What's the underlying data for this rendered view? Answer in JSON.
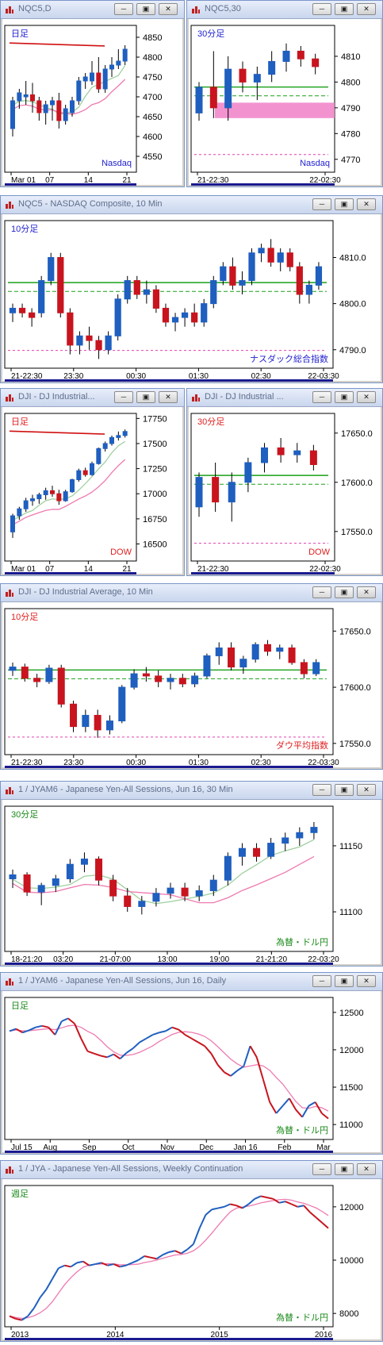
{
  "colors": {
    "up": "#1f5fbf",
    "down": "#c8141e",
    "green_line": "#1aa01a",
    "red_ma": "#d01010",
    "pink_ma": "#ee7ab0",
    "lightgreen_ma": "#9fd09f",
    "magenta_dash": "#e040b0",
    "zone_fill": "#f080c8",
    "nav_blue": "#1a1a90",
    "label_blue": "#1f1fd0",
    "label_red": "#e02020",
    "label_green": "#1a8a1a"
  },
  "panels": [
    {
      "id": "p1",
      "title": "NQC5,D",
      "chart_data": {
        "type": "candlestick",
        "corner_label": "日足",
        "watermark": "Nasdaq",
        "yticks": [
          4550,
          4600,
          4650,
          4700,
          4750,
          4800,
          4850
        ],
        "ylim": [
          4510,
          4880
        ],
        "xticks": [
          "Mar 01",
          "07",
          "14",
          "21"
        ],
        "candles": [
          [
            4620,
            4700,
            4600,
            4690
          ],
          [
            4690,
            4720,
            4670,
            4710
          ],
          [
            4700,
            4740,
            4680,
            4705
          ],
          [
            4705,
            4735,
            4660,
            4690
          ],
          [
            4690,
            4700,
            4640,
            4660
          ],
          [
            4660,
            4690,
            4630,
            4680
          ],
          [
            4680,
            4700,
            4640,
            4690
          ],
          [
            4690,
            4710,
            4620,
            4640
          ],
          [
            4640,
            4680,
            4630,
            4670
          ],
          [
            4660,
            4700,
            4650,
            4690
          ],
          [
            4690,
            4750,
            4680,
            4740
          ],
          [
            4740,
            4760,
            4720,
            4750
          ],
          [
            4740,
            4790,
            4730,
            4760
          ],
          [
            4760,
            4800,
            4710,
            4720
          ],
          [
            4720,
            4780,
            4710,
            4770
          ],
          [
            4770,
            4800,
            4750,
            4780
          ],
          [
            4780,
            4820,
            4770,
            4790
          ],
          [
            4790,
            4830,
            4780,
            4820
          ]
        ]
      }
    },
    {
      "id": "p2",
      "title": "NQC5,30",
      "chart_data": {
        "type": "candlestick",
        "corner_label": "30分足",
        "watermark": "Nasdaq",
        "yticks": [
          4770,
          4780,
          4790,
          4800,
          4810
        ],
        "ylim": [
          4765,
          4822
        ],
        "xticks": [
          "21-22:30",
          "22-02:30"
        ],
        "zone": [
          4786,
          4792
        ],
        "candles": [
          [
            4788,
            4800,
            4785,
            4798
          ],
          [
            4798,
            4812,
            4786,
            4790
          ],
          [
            4790,
            4810,
            4785,
            4805
          ],
          [
            4805,
            4808,
            4796,
            4800
          ],
          [
            4800,
            4806,
            4793,
            4803
          ],
          [
            4803,
            4812,
            4800,
            4808
          ],
          [
            4808,
            4815,
            4804,
            4812
          ],
          [
            4812,
            4814,
            4806,
            4809
          ],
          [
            4809,
            4811,
            4803,
            4806
          ]
        ]
      }
    },
    {
      "id": "p3",
      "title": "NQC5 - NASDAQ Composite, 10 Min",
      "chart_data": {
        "type": "candlestick",
        "corner_label": "10分足",
        "watermark": "ナスダック総合指数",
        "yticks": [
          4790.0,
          4800.0,
          4810.0
        ],
        "ylim": [
          4786,
          4818
        ],
        "xticks": [
          "21-22:30",
          "23:30",
          "00:30",
          "01:30",
          "02:30",
          "22-03:30"
        ],
        "candles": [
          [
            4798,
            4800,
            4796,
            4799
          ],
          [
            4799,
            4800,
            4797,
            4798
          ],
          [
            4798,
            4799,
            4795,
            4797
          ],
          [
            4798,
            4806,
            4797,
            4805
          ],
          [
            4805,
            4811,
            4804,
            4810
          ],
          [
            4810,
            4811,
            4797,
            4798
          ],
          [
            4798,
            4799,
            4789,
            4791
          ],
          [
            4791,
            4794,
            4789,
            4793
          ],
          [
            4793,
            4795,
            4790,
            4792
          ],
          [
            4792,
            4793,
            4788,
            4790
          ],
          [
            4790,
            4794,
            4789,
            4793
          ],
          [
            4793,
            4802,
            4792,
            4801
          ],
          [
            4801,
            4806,
            4800,
            4805
          ],
          [
            4805,
            4806,
            4801,
            4802
          ],
          [
            4802,
            4805,
            4800,
            4803
          ],
          [
            4803,
            4804,
            4798,
            4799
          ],
          [
            4799,
            4800,
            4795,
            4796
          ],
          [
            4796,
            4798,
            4794,
            4797
          ],
          [
            4797,
            4799,
            4795,
            4798
          ],
          [
            4798,
            4800,
            4795,
            4796
          ],
          [
            4796,
            4801,
            4795,
            4800
          ],
          [
            4800,
            4806,
            4799,
            4805
          ],
          [
            4805,
            4809,
            4804,
            4808
          ],
          [
            4808,
            4810,
            4803,
            4804
          ],
          [
            4804,
            4807,
            4802,
            4805
          ],
          [
            4805,
            4812,
            4804,
            4811
          ],
          [
            4811,
            4813,
            4809,
            4812
          ],
          [
            4812,
            4814,
            4808,
            4809
          ],
          [
            4809,
            4812,
            4807,
            4811
          ],
          [
            4811,
            4812,
            4807,
            4808
          ],
          [
            4808,
            4809,
            4800,
            4802
          ],
          [
            4802,
            4805,
            4800,
            4804
          ],
          [
            4804,
            4809,
            4803,
            4808
          ]
        ]
      }
    },
    {
      "id": "p4",
      "title": "DJI - DJ Industrial...",
      "chart_data": {
        "type": "candlestick",
        "corner_label": "日足",
        "watermark": "DOW",
        "yticks": [
          16500,
          16750,
          17000,
          17250,
          17500,
          17750
        ],
        "ylim": [
          16330,
          17800
        ],
        "xticks": [
          "Mar 01",
          "07",
          "14",
          "21"
        ],
        "candles": [
          [
            16620,
            16800,
            16560,
            16780
          ],
          [
            16780,
            16870,
            16740,
            16850
          ],
          [
            16850,
            16960,
            16820,
            16930
          ],
          [
            16930,
            16990,
            16880,
            16950
          ],
          [
            16950,
            17010,
            16900,
            16990
          ],
          [
            16990,
            17060,
            16940,
            17030
          ],
          [
            17030,
            17080,
            16970,
            17000
          ],
          [
            17000,
            17040,
            16890,
            16930
          ],
          [
            16930,
            17040,
            16920,
            17020
          ],
          [
            17020,
            17150,
            17010,
            17140
          ],
          [
            17140,
            17250,
            17120,
            17230
          ],
          [
            17230,
            17260,
            17170,
            17190
          ],
          [
            17190,
            17320,
            17180,
            17300
          ],
          [
            17300,
            17460,
            17290,
            17450
          ],
          [
            17450,
            17520,
            17420,
            17500
          ],
          [
            17500,
            17580,
            17480,
            17560
          ],
          [
            17560,
            17620,
            17530,
            17580
          ],
          [
            17580,
            17640,
            17560,
            17620
          ]
        ]
      }
    },
    {
      "id": "p5",
      "title": "DJI - DJ Industrial ...",
      "chart_data": {
        "type": "candlestick",
        "corner_label": "30分足",
        "watermark": "DOW",
        "yticks": [
          17550.0,
          17600.0,
          17650.0
        ],
        "ylim": [
          17520,
          17670
        ],
        "xticks": [
          "21-22:30",
          "22-02:30"
        ],
        "candles": [
          [
            17575,
            17610,
            17565,
            17605
          ],
          [
            17605,
            17620,
            17570,
            17580
          ],
          [
            17580,
            17610,
            17560,
            17600
          ],
          [
            17600,
            17625,
            17590,
            17620
          ],
          [
            17620,
            17640,
            17610,
            17635
          ],
          [
            17635,
            17645,
            17620,
            17628
          ],
          [
            17628,
            17640,
            17620,
            17632
          ],
          [
            17632,
            17638,
            17612,
            17618
          ]
        ]
      }
    },
    {
      "id": "p6",
      "title": "DJI - DJ Industrial Average, 10 Min",
      "chart_data": {
        "type": "candlestick",
        "corner_label": "10分足",
        "watermark": "ダウ平均指数",
        "yticks": [
          17550.0,
          17600.0,
          17650.0
        ],
        "ylim": [
          17540,
          17670
        ],
        "xticks": [
          "21-22:30",
          "23:30",
          "00:30",
          "01:30",
          "02:30",
          "22-03:30"
        ],
        "candles": [
          [
            17615,
            17622,
            17610,
            17618
          ],
          [
            17618,
            17621,
            17605,
            17608
          ],
          [
            17608,
            17612,
            17600,
            17605
          ],
          [
            17605,
            17620,
            17603,
            17617
          ],
          [
            17617,
            17620,
            17582,
            17585
          ],
          [
            17585,
            17588,
            17560,
            17565
          ],
          [
            17565,
            17580,
            17560,
            17575
          ],
          [
            17575,
            17580,
            17555,
            17562
          ],
          [
            17562,
            17575,
            17558,
            17570
          ],
          [
            17570,
            17602,
            17568,
            17600
          ],
          [
            17600,
            17616,
            17598,
            17612
          ],
          [
            17612,
            17618,
            17605,
            17610
          ],
          [
            17610,
            17615,
            17600,
            17605
          ],
          [
            17605,
            17612,
            17598,
            17608
          ],
          [
            17608,
            17612,
            17600,
            17603
          ],
          [
            17603,
            17613,
            17600,
            17610
          ],
          [
            17610,
            17630,
            17608,
            17628
          ],
          [
            17628,
            17640,
            17620,
            17635
          ],
          [
            17635,
            17640,
            17615,
            17618
          ],
          [
            17618,
            17628,
            17612,
            17625
          ],
          [
            17625,
            17640,
            17622,
            17638
          ],
          [
            17638,
            17642,
            17628,
            17632
          ],
          [
            17632,
            17638,
            17625,
            17635
          ],
          [
            17635,
            17638,
            17620,
            17622
          ],
          [
            17622,
            17625,
            17608,
            17612
          ],
          [
            17612,
            17625,
            17610,
            17622
          ]
        ]
      }
    },
    {
      "id": "p7",
      "title": "1 / JYAM6 - Japanese Yen-All Sessions, Jun 16, 30 Min",
      "chart_data": {
        "type": "candlestick",
        "corner_label": "30分足",
        "watermark": "為替・ドル円",
        "yticks": [
          11100,
          11150
        ],
        "ylim": [
          11070,
          11180
        ],
        "xticks": [
          "18-21:20",
          "03:20",
          "21-07:00",
          "13:00",
          "19:00",
          "21-21:20",
          "22-03:20"
        ],
        "candles": [
          [
            11125,
            11132,
            11118,
            11128
          ],
          [
            11128,
            11130,
            11112,
            11115
          ],
          [
            11115,
            11122,
            11105,
            11120
          ],
          [
            11120,
            11128,
            11115,
            11125
          ],
          [
            11125,
            11140,
            11122,
            11136
          ],
          [
            11136,
            11145,
            11130,
            11140
          ],
          [
            11140,
            11142,
            11120,
            11124
          ],
          [
            11124,
            11128,
            11108,
            11112
          ],
          [
            11112,
            11118,
            11100,
            11104
          ],
          [
            11104,
            11112,
            11098,
            11108
          ],
          [
            11108,
            11118,
            11104,
            11114
          ],
          [
            11114,
            11122,
            11110,
            11118
          ],
          [
            11118,
            11122,
            11108,
            11112
          ],
          [
            11112,
            11120,
            11108,
            11116
          ],
          [
            11116,
            11128,
            11112,
            11124
          ],
          [
            11124,
            11145,
            11120,
            11142
          ],
          [
            11142,
            11152,
            11135,
            11148
          ],
          [
            11148,
            11152,
            11138,
            11142
          ],
          [
            11142,
            11156,
            11140,
            11152
          ],
          [
            11152,
            11160,
            11146,
            11156
          ],
          [
            11156,
            11164,
            11150,
            11160
          ],
          [
            11160,
            11168,
            11155,
            11164
          ]
        ]
      }
    },
    {
      "id": "p8",
      "title": "1 / JYAM6 - Japanese Yen-All Sessions, Jun 16, Daily",
      "chart_data": {
        "type": "line",
        "corner_label": "日足",
        "watermark": "為替・ドル円",
        "yticks": [
          11000,
          11500,
          12000,
          12500
        ],
        "ylim": [
          10800,
          12700
        ],
        "xticks": [
          "Jul 15",
          "Aug",
          "Sep",
          "Oct",
          "Nov",
          "Dec",
          "Jan 16",
          "Feb",
          "Mar"
        ],
        "values": [
          12250,
          12280,
          12230,
          12260,
          12300,
          12320,
          12300,
          12200,
          12380,
          12420,
          12350,
          12150,
          11980,
          11950,
          11920,
          11900,
          11940,
          11880,
          11960,
          12020,
          12100,
          12150,
          12200,
          12230,
          12250,
          12300,
          12270,
          12200,
          12150,
          12100,
          12050,
          11950,
          11800,
          11700,
          11650,
          11720,
          11780,
          12050,
          11900,
          11600,
          11300,
          11150,
          11250,
          11350,
          11200,
          11100,
          11250,
          11300,
          11150,
          11080
        ]
      }
    },
    {
      "id": "p9",
      "title": "1 / JYA - Japanese Yen-All Sessions, Weekly Continuation",
      "chart_data": {
        "type": "line",
        "corner_label": "週足",
        "watermark": "為替・ドル円",
        "yticks": [
          8000,
          10000,
          12000
        ],
        "ylim": [
          7500,
          12800
        ],
        "xticks": [
          "2013",
          "2014",
          "2015",
          "2016"
        ],
        "values": [
          7900,
          7800,
          7750,
          7900,
          8200,
          8600,
          8900,
          9300,
          9700,
          9800,
          9750,
          9900,
          9950,
          9800,
          9850,
          9900,
          9800,
          9850,
          9750,
          9800,
          9900,
          10000,
          10150,
          10100,
          10050,
          10200,
          10300,
          10350,
          10250,
          10400,
          10600,
          11200,
          11700,
          11900,
          11950,
          12000,
          12100,
          12050,
          11950,
          12100,
          12300,
          12400,
          12350,
          12300,
          12150,
          12200,
          12100,
          12000,
          12050,
          11800,
          11600,
          11400,
          11200
        ]
      }
    }
  ]
}
